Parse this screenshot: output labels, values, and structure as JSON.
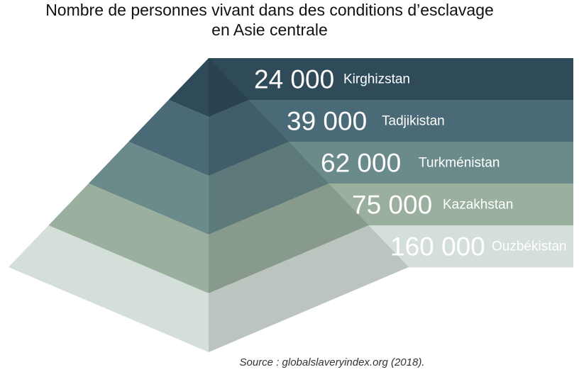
{
  "chart_data": {
    "type": "pyramid",
    "title_lines": [
      "Nombre de personnes vivant dans des conditions d’esclavage",
      "en Asie centrale"
    ],
    "categories": [
      "Kirghizstan",
      "Tadjikistan",
      "Turkménistan",
      "Kazakhstan",
      "Ouzbékistan"
    ],
    "values": [
      24000,
      39000,
      62000,
      75000,
      160000
    ],
    "value_labels": [
      "24 000",
      "39 000",
      "62 000",
      "75 000",
      "160 000"
    ],
    "colors": [
      "#2f4b5a",
      "#4a6a77",
      "#6b8a8a",
      "#9aaf9e",
      "#d4dfd9"
    ],
    "source": "Source : globalslaveryindex.org (2018)."
  }
}
